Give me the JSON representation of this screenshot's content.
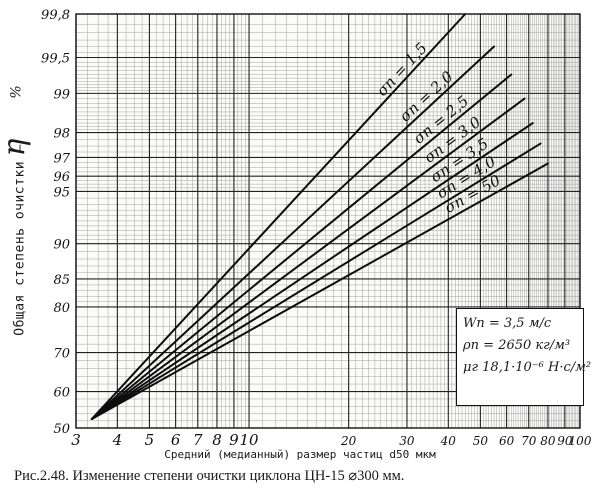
{
  "chart_data": {
    "type": "line",
    "title": "Рис.2.48. Изменение степени очистки циклона ЦН-15 ⌀300 мм.",
    "xlabel": "Средний (медианный) размер частиц d50 мкм",
    "ylabel": "Общая степень очистки –",
    "ylabel_symbol": "η",
    "ylabel_unit": "%",
    "x_scale": "log",
    "y_scale": "probability",
    "xlim": [
      3,
      100
    ],
    "ylim": [
      50,
      99.8
    ],
    "x_ticks": [
      "3",
      "4",
      "5",
      "6",
      "7",
      "8",
      "9",
      "10",
      "20",
      "30",
      "40",
      "50",
      "60",
      "70",
      "80",
      "90",
      "100"
    ],
    "y_ticks": [
      "50",
      "60",
      "70",
      "80",
      "85",
      "90",
      "95",
      "96",
      "97",
      "98",
      "99",
      "99,5",
      "99,8"
    ],
    "grid": true,
    "series": [
      {
        "name": "σп = 1,5",
        "x": [
          3.35,
          45
        ],
        "y": [
          52.5,
          99.8
        ]
      },
      {
        "name": "σп = 2,0",
        "x": [
          3.35,
          55
        ],
        "y": [
          52.5,
          99.6
        ]
      },
      {
        "name": "σп = 2,5",
        "x": [
          3.35,
          62
        ],
        "y": [
          52.5,
          99.3
        ]
      },
      {
        "name": "σп = 3,0",
        "x": [
          3.35,
          68
        ],
        "y": [
          52.5,
          98.9
        ]
      },
      {
        "name": "σп = 3,5",
        "x": [
          3.35,
          72
        ],
        "y": [
          52.5,
          98.3
        ]
      },
      {
        "name": "σп = 4,0",
        "x": [
          3.35,
          76
        ],
        "y": [
          52.5,
          97.6
        ]
      },
      {
        "name": "σп = 50",
        "x": [
          3.35,
          80
        ],
        "y": [
          52.5,
          96.7
        ]
      }
    ],
    "annotations": {
      "wp": "Wп = 3,5 м/с",
      "rho": "ρп = 2650 кг/м³",
      "mu": "μг 18,1·10⁻⁶ Н·с/м²"
    }
  }
}
